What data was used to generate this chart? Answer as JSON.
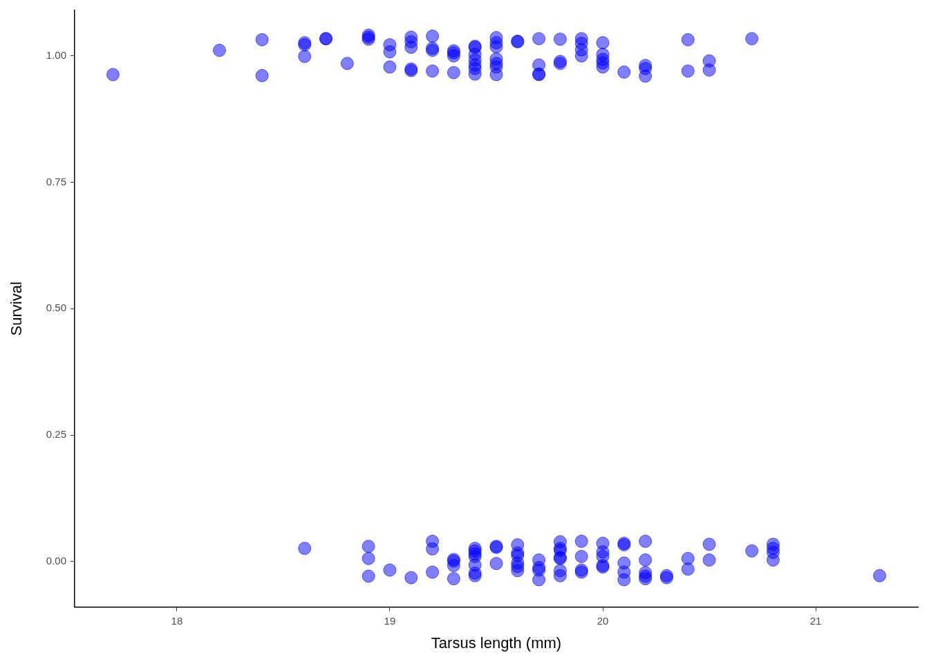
{
  "chart_data": {
    "type": "scatter",
    "xlabel": "Tarsus length (mm)",
    "ylabel": "Survival",
    "xlim": [
      17.52,
      21.48
    ],
    "ylim": [
      -0.09,
      1.09
    ],
    "xticks": [
      18,
      19,
      20,
      21
    ],
    "yticks": [
      {
        "value": 0,
        "label": "0.00"
      },
      {
        "value": 0.25,
        "label": "0.25"
      },
      {
        "value": 0.5,
        "label": "0.50"
      },
      {
        "value": 0.75,
        "label": "0.75"
      },
      {
        "value": 1,
        "label": "1.00"
      }
    ],
    "grid": false,
    "legend": false,
    "marker": "circle",
    "series": [
      {
        "color": "#0000ff",
        "x": [
          17.7,
          18.2,
          18.4,
          18.4,
          18.6,
          18.6,
          18.6,
          18.7,
          18.7,
          18.8,
          18.9,
          18.9,
          18.9,
          19.0,
          19.0,
          19.0,
          19.1,
          19.1,
          19.1,
          19.1,
          19.1,
          19.2,
          19.2,
          19.2,
          19.2,
          19.3,
          19.3,
          19.3,
          19.3,
          19.4,
          19.4,
          19.4,
          19.4,
          19.4,
          19.4,
          19.4,
          19.5,
          19.5,
          19.5,
          19.5,
          19.5,
          19.5,
          19.5,
          19.6,
          19.6,
          19.7,
          19.7,
          19.7,
          19.7,
          19.8,
          19.8,
          19.8,
          19.9,
          19.9,
          19.9,
          19.9,
          20.0,
          20.0,
          20.0,
          20.0,
          20.0,
          20.1,
          20.2,
          20.2,
          20.2,
          20.4,
          20.4,
          20.5,
          20.5,
          20.7,
          18.6,
          18.9,
          18.9,
          18.9,
          19.0,
          19.1,
          19.2,
          19.2,
          19.2,
          19.3,
          19.3,
          19.3,
          19.3,
          19.4,
          19.4,
          19.4,
          19.4,
          19.4,
          19.4,
          19.4,
          19.5,
          19.5,
          19.5,
          19.6,
          19.6,
          19.6,
          19.6,
          19.6,
          19.6,
          19.7,
          19.7,
          19.7,
          19.7,
          19.8,
          19.8,
          19.8,
          19.8,
          19.8,
          19.8,
          19.8,
          19.9,
          19.9,
          19.9,
          19.9,
          20.0,
          20.0,
          20.0,
          20.0,
          20.0,
          20.1,
          20.1,
          20.1,
          20.1,
          20.1,
          20.2,
          20.2,
          20.2,
          20.2,
          20.2,
          20.3,
          20.3,
          20.4,
          20.4,
          20.5,
          20.5,
          20.7,
          20.8,
          20.8,
          20.8,
          20.8,
          21.3
        ],
        "values": [
          0.963,
          1.011,
          1.032,
          0.961,
          1.026,
          1.022,
          0.999,
          1.034,
          1.034,
          0.985,
          1.041,
          1.037,
          1.033,
          1.022,
          1.008,
          0.978,
          1.037,
          1.028,
          1.017,
          0.974,
          0.971,
          1.039,
          1.015,
          1.011,
          0.97,
          1.01,
          1.006,
          1.0,
          0.967,
          1.019,
          1.017,
          1.003,
          0.992,
          0.982,
          0.975,
          0.964,
          1.036,
          1.026,
          1.018,
          0.994,
          0.985,
          0.978,
          0.963,
          1.029,
          1.028,
          1.034,
          0.982,
          0.964,
          0.963,
          1.033,
          0.989,
          0.985,
          1.034,
          1.025,
          1.012,
          1.0,
          1.026,
          1.003,
          0.993,
          0.986,
          0.978,
          0.968,
          0.981,
          0.975,
          0.96,
          1.032,
          0.97,
          0.99,
          0.972,
          1.034,
          0.026,
          0.03,
          0.006,
          -0.029,
          -0.017,
          -0.032,
          0.04,
          0.025,
          -0.021,
          0.004,
          0.001,
          -0.008,
          -0.034,
          0.026,
          0.021,
          0.015,
          0.01,
          -0.007,
          -0.023,
          -0.028,
          0.03,
          0.028,
          -0.004,
          0.033,
          0.017,
          0.012,
          -0.003,
          -0.01,
          -0.018,
          0.003,
          -0.012,
          -0.017,
          -0.036,
          0.039,
          0.026,
          0.022,
          0.008,
          0.006,
          -0.018,
          -0.028,
          0.04,
          0.01,
          -0.017,
          -0.021,
          0.036,
          0.019,
          0.01,
          -0.008,
          -0.011,
          0.036,
          0.033,
          -0.003,
          -0.021,
          -0.036,
          0.04,
          0.003,
          -0.022,
          -0.029,
          -0.034,
          -0.028,
          -0.032,
          0.006,
          -0.015,
          0.034,
          0.003,
          0.021,
          0.034,
          0.026,
          0.018,
          0.003,
          -0.028
        ]
      }
    ]
  }
}
